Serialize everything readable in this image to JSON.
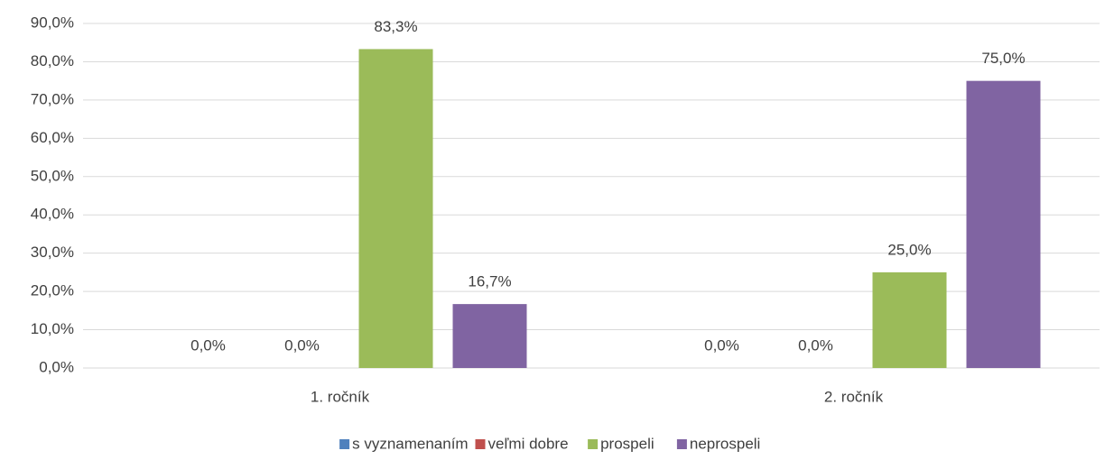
{
  "chart_data": {
    "type": "bar",
    "categories": [
      "1. ročník",
      "2. ročník"
    ],
    "series": [
      {
        "name": "s vyznamenaním",
        "color": "#4f81bd",
        "values": [
          0,
          0
        ],
        "value_labels": [
          "0,0%",
          "0,0%"
        ]
      },
      {
        "name": "veľmi dobre",
        "color": "#c0504d",
        "values": [
          0,
          0
        ],
        "value_labels": [
          "0,0%",
          "0,0%"
        ]
      },
      {
        "name": "prospeli",
        "color": "#9bbb59",
        "values": [
          83.3,
          25
        ],
        "value_labels": [
          "83,3%",
          "25,0%"
        ]
      },
      {
        "name": "neprospeli",
        "color": "#8064a2",
        "values": [
          16.7,
          75
        ],
        "value_labels": [
          "16,7%",
          "75,0%"
        ]
      }
    ],
    "ylim": [
      0,
      90
    ],
    "yticks": [
      {
        "value": 0,
        "label": "0,0%"
      },
      {
        "value": 10,
        "label": "10,0%"
      },
      {
        "value": 20,
        "label": "20,0%"
      },
      {
        "value": 30,
        "label": "30,0%"
      },
      {
        "value": 40,
        "label": "40,0%"
      },
      {
        "value": 50,
        "label": "50,0%"
      },
      {
        "value": 60,
        "label": "60,0%"
      },
      {
        "value": 70,
        "label": "70,0%"
      },
      {
        "value": 80,
        "label": "80,0%"
      },
      {
        "value": 90,
        "label": "90,0%"
      }
    ],
    "grid": true,
    "legend": "bottom"
  }
}
